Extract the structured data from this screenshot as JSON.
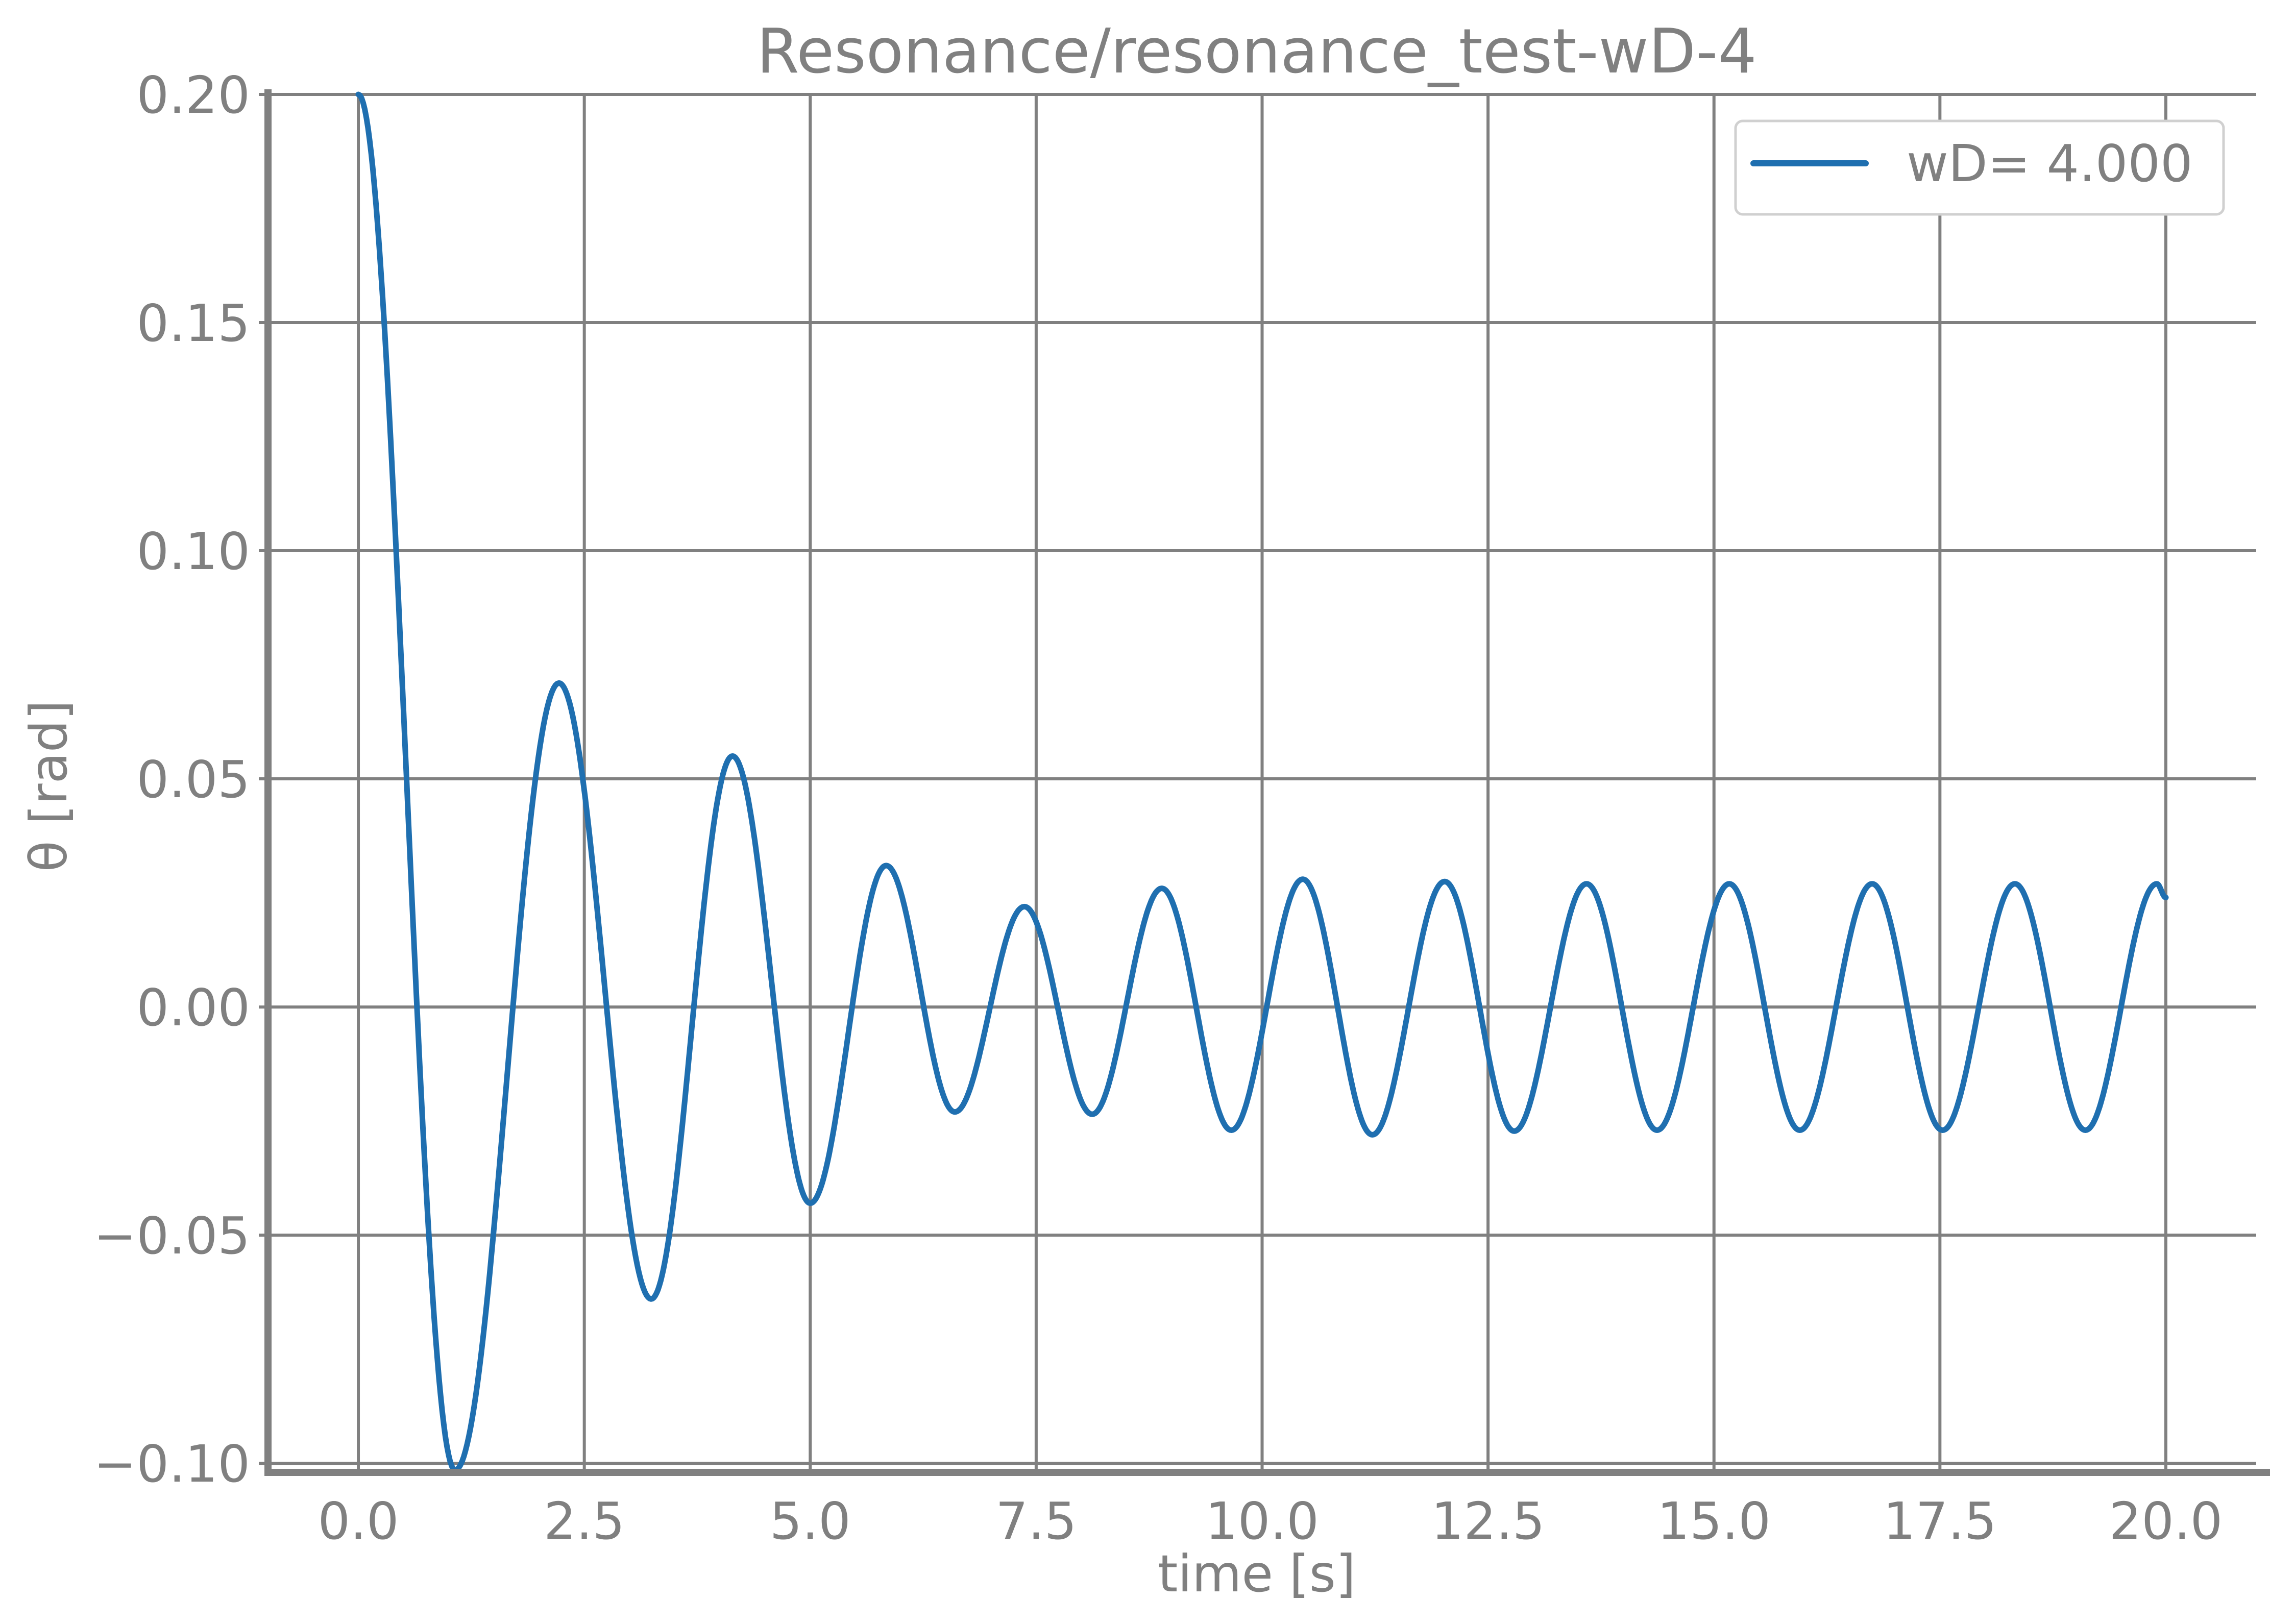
{
  "chart_data": {
    "type": "line",
    "title": "Resonance/resonance_test-wD-4",
    "xlabel": "time [s]",
    "ylabel": "θ [rad]",
    "xlim": [
      -1.0,
      21.0
    ],
    "ylim": [
      -0.102,
      0.2
    ],
    "xticks": [
      0.0,
      2.5,
      5.0,
      7.5,
      10.0,
      12.5,
      15.0,
      17.5,
      20.0
    ],
    "xtick_labels": [
      "0.0",
      "2.5",
      "5.0",
      "7.5",
      "10.0",
      "12.5",
      "15.0",
      "17.5",
      "20.0"
    ],
    "yticks": [
      -0.1,
      -0.05,
      0.0,
      0.05,
      0.1,
      0.15,
      0.2
    ],
    "ytick_labels": [
      "−0.10",
      "−0.05",
      "0.00",
      "0.05",
      "0.10",
      "0.15",
      "0.20"
    ],
    "grid": true,
    "legend_position": "top-right",
    "series": [
      {
        "name": "wD= 4.000",
        "color": "#1f6fb0",
        "x": [
          0.0,
          1.07,
          2.22,
          3.24,
          4.14,
          5.0,
          5.84,
          6.6,
          7.37,
          8.12,
          8.89,
          9.66,
          10.45,
          11.22,
          12.02,
          12.79,
          13.59,
          14.37,
          15.17,
          15.95,
          16.75,
          17.53,
          18.33,
          19.11,
          19.9,
          20.0
        ],
        "y": [
          0.2,
          -0.1015,
          0.071,
          -0.064,
          0.055,
          -0.043,
          0.031,
          -0.023,
          0.022,
          -0.0235,
          0.026,
          -0.027,
          0.028,
          -0.028,
          0.0275,
          -0.0272,
          0.027,
          -0.027,
          0.027,
          -0.027,
          0.027,
          -0.027,
          0.027,
          -0.027,
          0.027,
          0.024
        ]
      }
    ]
  }
}
